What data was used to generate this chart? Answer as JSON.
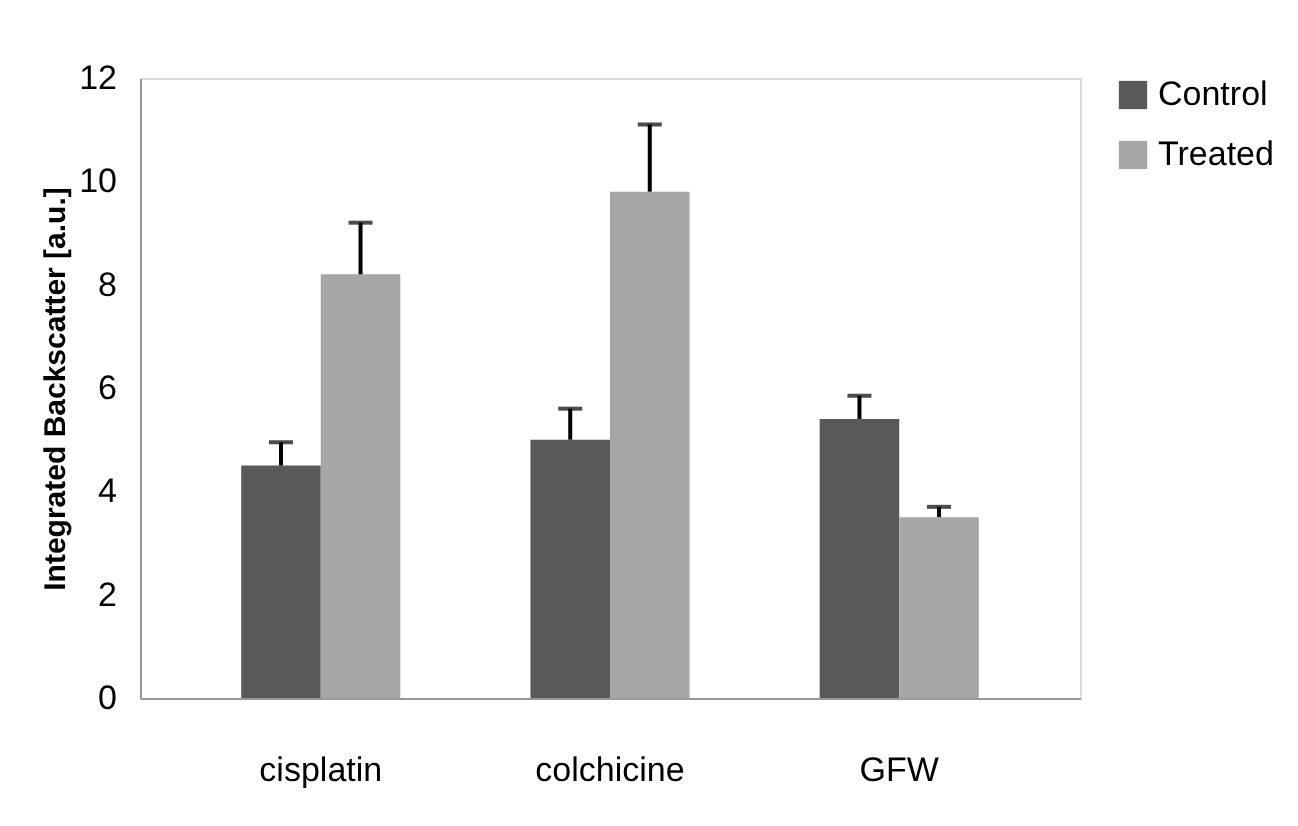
{
  "chart_data": {
    "type": "bar",
    "ylabel": "Integrated Backscatter [a.u.]",
    "categories": [
      "cisplatin",
      "colchicine",
      "GFW"
    ],
    "series": [
      {
        "name": "Control",
        "color": "#595959",
        "values": [
          4.5,
          5.0,
          5.4
        ],
        "errors": [
          [
            4.5,
            4.95
          ],
          [
            5.0,
            5.6
          ],
          [
            5.4,
            5.85
          ]
        ]
      },
      {
        "name": "Treated",
        "color": "#a6a6a6",
        "values": [
          8.2,
          9.8,
          3.5
        ],
        "errors": [
          [
            8.2,
            9.2
          ],
          [
            9.8,
            11.1
          ],
          [
            3.5,
            3.7
          ]
        ]
      }
    ],
    "ylim": [
      0,
      12
    ],
    "yticks": [
      0,
      2,
      4,
      6,
      8,
      10,
      12
    ],
    "grid": false,
    "legend": "right"
  }
}
